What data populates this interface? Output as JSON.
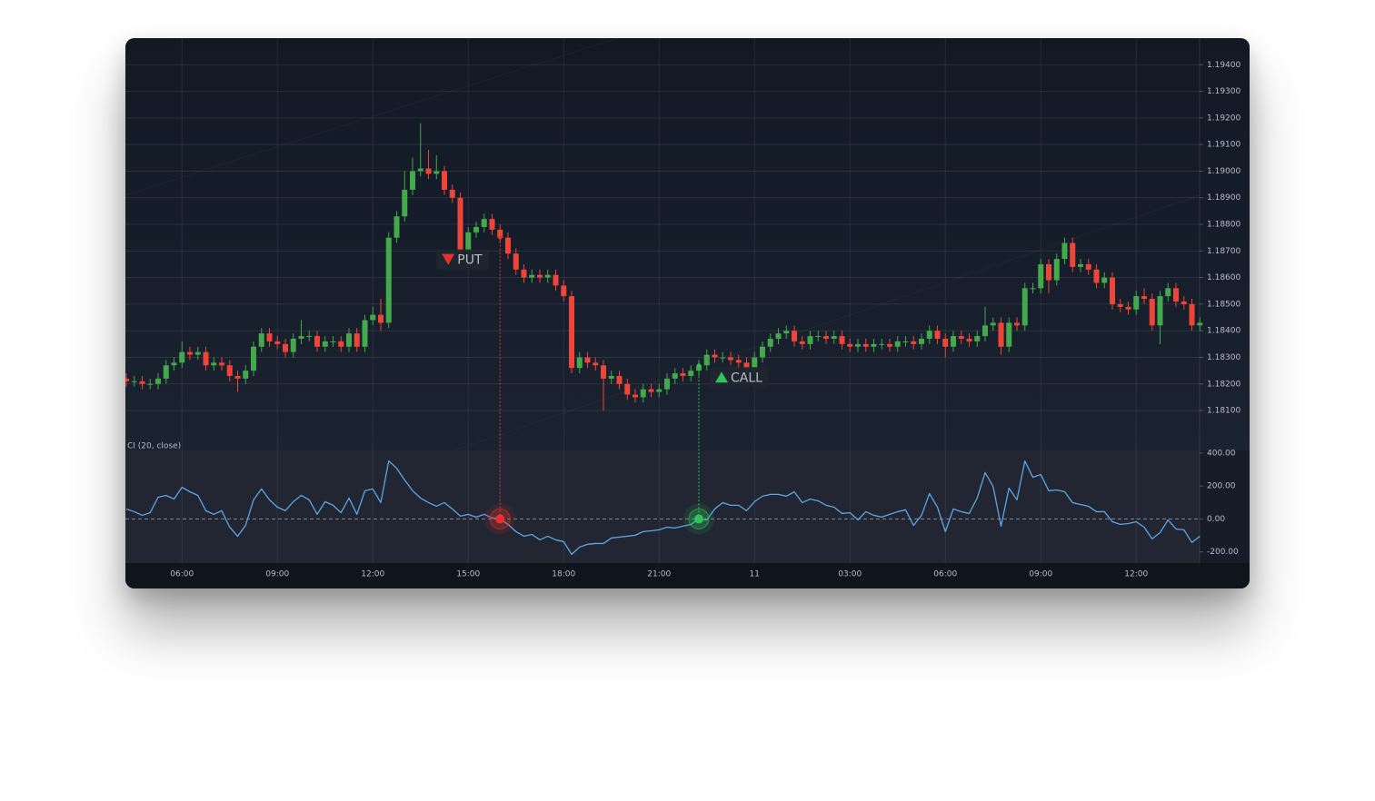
{
  "chart_data": [
    {
      "type": "candlestick",
      "categories": [
        null,
        null,
        null,
        null,
        null,
        null,
        null,
        "06:00",
        null,
        null,
        null,
        null,
        null,
        null,
        null,
        null,
        null,
        null,
        null,
        "09:00",
        null,
        null,
        null,
        null,
        null,
        null,
        null,
        null,
        null,
        null,
        null,
        "12:00",
        null,
        null,
        null,
        null,
        null,
        null,
        null,
        null,
        null,
        null,
        null,
        "15:00",
        null,
        null,
        null,
        null,
        null,
        null,
        null,
        null,
        null,
        null,
        null,
        "18:00",
        null,
        null,
        null,
        null,
        null,
        null,
        null,
        null,
        null,
        null,
        null,
        "21:00",
        null,
        null,
        null,
        null,
        null,
        null,
        null,
        null,
        null,
        null,
        null,
        "11",
        null,
        null,
        null,
        null,
        null,
        null,
        null,
        null,
        null,
        null,
        null,
        "03:00",
        null,
        null,
        null,
        null,
        null,
        null,
        null,
        null,
        null,
        null,
        null,
        "06:00",
        null,
        null,
        null,
        null,
        null,
        null,
        null,
        null,
        null,
        null,
        null,
        "09:00",
        null,
        null,
        null,
        null,
        null,
        null,
        null,
        null,
        null,
        null,
        null,
        "12:00",
        null,
        null,
        null,
        null,
        null,
        null,
        null,
        null
      ],
      "open": [
        1.1822,
        1.1821,
        1.1821,
        1.182,
        1.182,
        1.1822,
        1.1827,
        1.1828,
        1.1832,
        1.1831,
        1.1832,
        1.1827,
        1.1828,
        1.1827,
        1.1823,
        1.1822,
        1.1825,
        1.1834,
        1.1839,
        1.1836,
        1.1835,
        1.1832,
        1.1837,
        1.1838,
        1.1838,
        1.1834,
        1.1836,
        1.1836,
        1.1834,
        1.1839,
        1.1834,
        1.1844,
        1.1846,
        1.1843,
        1.1875,
        1.1883,
        1.1893,
        1.19,
        1.1901,
        1.1899,
        1.19,
        1.1893,
        1.189,
        1.187,
        1.1877,
        1.1879,
        1.1882,
        1.1878,
        1.1875,
        1.1869,
        1.1863,
        1.186,
        1.1861,
        1.186,
        1.1861,
        1.1857,
        1.1853,
        1.1826,
        1.183,
        1.1828,
        1.1827,
        1.1822,
        1.1823,
        1.182,
        1.1816,
        1.1815,
        1.1818,
        1.1817,
        1.1818,
        1.1822,
        1.1824,
        1.1823,
        1.1825,
        1.1827,
        1.1831,
        1.183,
        1.183,
        1.1829,
        1.1828,
        1.1826,
        1.183,
        1.1834,
        1.1837,
        1.1839,
        1.184,
        1.1836,
        1.1835,
        1.1838,
        1.1838,
        1.1837,
        1.1838,
        1.1835,
        1.1834,
        1.1835,
        1.1834,
        1.1835,
        1.1835,
        1.1834,
        1.1836,
        1.1836,
        1.1835,
        1.1837,
        1.184,
        1.1837,
        1.1834,
        1.1838,
        1.1837,
        1.1836,
        1.1838,
        1.1842,
        1.1843,
        1.1834,
        1.1843,
        1.1842,
        1.1856,
        1.1856,
        1.1865,
        1.1859,
        1.1867,
        1.1873,
        1.1864,
        1.1865,
        1.1863,
        1.1858,
        1.186,
        1.185,
        1.1849,
        1.1848,
        1.1853,
        1.1852,
        1.1842,
        1.1853,
        1.1856,
        1.1851,
        1.185,
        1.1842
      ],
      "high": [
        1.1824,
        1.1823,
        1.1823,
        1.1822,
        1.1824,
        1.1829,
        1.183,
        1.1836,
        1.1834,
        1.1834,
        1.1834,
        1.183,
        1.183,
        1.1829,
        1.1825,
        1.1827,
        1.1836,
        1.1841,
        1.1841,
        1.1838,
        1.1837,
        1.1839,
        1.1844,
        1.184,
        1.184,
        1.1838,
        1.1838,
        1.1838,
        1.1841,
        1.1841,
        1.1846,
        1.1849,
        1.1852,
        1.1877,
        1.1885,
        1.19,
        1.1905,
        1.1918,
        1.1908,
        1.1906,
        1.1902,
        1.1895,
        1.1892,
        1.1879,
        1.1881,
        1.1884,
        1.1884,
        1.188,
        1.1877,
        1.1871,
        1.1865,
        1.1863,
        1.1863,
        1.1863,
        1.1863,
        1.1859,
        1.1855,
        1.1832,
        1.1832,
        1.183,
        1.1829,
        1.1825,
        1.1825,
        1.1822,
        1.1818,
        1.182,
        1.182,
        1.182,
        1.1824,
        1.1826,
        1.1826,
        1.1827,
        1.1829,
        1.1833,
        1.1833,
        1.1832,
        1.1832,
        1.1831,
        1.183,
        1.1832,
        1.1836,
        1.1839,
        1.1841,
        1.1842,
        1.1842,
        1.1838,
        1.184,
        1.184,
        1.184,
        1.184,
        1.184,
        1.1837,
        1.1837,
        1.1837,
        1.1837,
        1.1837,
        1.1837,
        1.1838,
        1.1838,
        1.1838,
        1.1839,
        1.1842,
        1.1842,
        1.1839,
        1.184,
        1.184,
        1.1839,
        1.184,
        1.1849,
        1.1845,
        1.1845,
        1.1845,
        1.1845,
        1.1858,
        1.1858,
        1.1867,
        1.1867,
        1.1869,
        1.1875,
        1.1875,
        1.1867,
        1.1867,
        1.1865,
        1.1862,
        1.1862,
        1.1852,
        1.1851,
        1.1855,
        1.1856,
        1.1854,
        1.1855,
        1.1858,
        1.1858,
        1.1853,
        1.1852,
        1.1845
      ],
      "low": [
        1.1819,
        1.1819,
        1.1818,
        1.1818,
        1.1818,
        1.182,
        1.1825,
        1.1826,
        1.1829,
        1.1829,
        1.1825,
        1.1825,
        1.1825,
        1.1821,
        1.1817,
        1.182,
        1.1823,
        1.1832,
        1.1834,
        1.1833,
        1.183,
        1.183,
        1.1835,
        1.1836,
        1.1832,
        1.1832,
        1.1834,
        1.1832,
        1.1832,
        1.1832,
        1.1832,
        1.1842,
        1.184,
        1.1841,
        1.1873,
        1.1881,
        1.1891,
        1.1898,
        1.1897,
        1.1897,
        1.1891,
        1.1888,
        1.1866,
        1.1868,
        1.1875,
        1.1877,
        1.1876,
        1.1873,
        1.1867,
        1.1861,
        1.1858,
        1.1858,
        1.1858,
        1.1858,
        1.1855,
        1.1851,
        1.1824,
        1.1824,
        1.1826,
        1.1825,
        1.181,
        1.182,
        1.1818,
        1.1814,
        1.1813,
        1.1813,
        1.1815,
        1.1815,
        1.1816,
        1.182,
        1.1821,
        1.1821,
        1.1823,
        1.1825,
        1.1828,
        1.1828,
        1.1827,
        1.1826,
        1.1824,
        1.1824,
        1.1828,
        1.1832,
        1.1835,
        1.1837,
        1.1834,
        1.1833,
        1.1833,
        1.1836,
        1.1835,
        1.1835,
        1.1833,
        1.1832,
        1.1832,
        1.1832,
        1.1832,
        1.1833,
        1.1832,
        1.1832,
        1.1834,
        1.1833,
        1.1833,
        1.1835,
        1.1835,
        1.183,
        1.1832,
        1.1835,
        1.1834,
        1.1834,
        1.1836,
        1.184,
        1.1831,
        1.1832,
        1.184,
        1.184,
        1.1854,
        1.1854,
        1.1854,
        1.1857,
        1.1865,
        1.1862,
        1.1862,
        1.1861,
        1.1856,
        1.1856,
        1.1848,
        1.1847,
        1.1846,
        1.1846,
        1.185,
        1.184,
        1.1835,
        1.1851,
        1.1849,
        1.1848,
        1.184,
        1.184
      ],
      "close": [
        1.1821,
        1.1821,
        1.182,
        1.182,
        1.1822,
        1.1827,
        1.1828,
        1.1832,
        1.1831,
        1.1832,
        1.1827,
        1.1828,
        1.1827,
        1.1823,
        1.1822,
        1.1825,
        1.1834,
        1.1839,
        1.1836,
        1.1835,
        1.1832,
        1.1837,
        1.1838,
        1.1838,
        1.1834,
        1.1836,
        1.1836,
        1.1834,
        1.1839,
        1.1834,
        1.1844,
        1.1846,
        1.1843,
        1.1875,
        1.1883,
        1.1893,
        1.19,
        1.1901,
        1.1899,
        1.19,
        1.1893,
        1.189,
        1.187,
        1.1877,
        1.1879,
        1.1882,
        1.1878,
        1.1875,
        1.1869,
        1.1863,
        1.186,
        1.1861,
        1.186,
        1.1861,
        1.1857,
        1.1853,
        1.1826,
        1.183,
        1.1828,
        1.1827,
        1.1822,
        1.1823,
        1.182,
        1.1816,
        1.1815,
        1.1818,
        1.1817,
        1.1818,
        1.1822,
        1.1824,
        1.1823,
        1.1825,
        1.1827,
        1.1831,
        1.183,
        1.183,
        1.1829,
        1.1828,
        1.1826,
        1.183,
        1.1834,
        1.1837,
        1.1839,
        1.184,
        1.1836,
        1.1835,
        1.1838,
        1.1838,
        1.1837,
        1.1838,
        1.1835,
        1.1834,
        1.1835,
        1.1834,
        1.1835,
        1.1835,
        1.1834,
        1.1836,
        1.1836,
        1.1835,
        1.1837,
        1.184,
        1.1837,
        1.1834,
        1.1838,
        1.1837,
        1.1836,
        1.1838,
        1.1842,
        1.1843,
        1.1834,
        1.1843,
        1.1842,
        1.1856,
        1.1856,
        1.1865,
        1.1859,
        1.1867,
        1.1873,
        1.1864,
        1.1865,
        1.1863,
        1.1858,
        1.186,
        1.185,
        1.1849,
        1.1848,
        1.1853,
        1.1852,
        1.1842,
        1.1853,
        1.1856,
        1.1851,
        1.185,
        1.1842,
        1.1843
      ],
      "up_color": "#43a94b",
      "down_color": "#ef4438",
      "ylim": [
        1.1795,
        1.195
      ],
      "yticks": [
        {
          "value": 1.181,
          "label": "1.18100"
        },
        {
          "value": 1.182,
          "label": "1.18200"
        },
        {
          "value": 1.183,
          "label": "1.18300"
        },
        {
          "value": 1.184,
          "label": "1.18400"
        },
        {
          "value": 1.185,
          "label": "1.18500"
        },
        {
          "value": 1.186,
          "label": "1.18600"
        },
        {
          "value": 1.187,
          "label": "1.18700"
        },
        {
          "value": 1.188,
          "label": "1.18800"
        },
        {
          "value": 1.189,
          "label": "1.18900"
        },
        {
          "value": 1.19,
          "label": "1.19000"
        },
        {
          "value": 1.191,
          "label": "1.19100"
        },
        {
          "value": 1.192,
          "label": "1.19200"
        },
        {
          "value": 1.193,
          "label": "1.19300"
        },
        {
          "value": 1.194,
          "label": "1.19400"
        }
      ],
      "grid": true,
      "signals": [
        {
          "label": "PUT",
          "at": 47,
          "color": "#e8302c"
        },
        {
          "label": "CALL",
          "at": 72,
          "color": "#2fc45a"
        }
      ]
    },
    {
      "type": "line",
      "title": "CI (20, close)",
      "series": [
        {
          "color": "#5ea6e3",
          "values": [
            60,
            44,
            22,
            38,
            132,
            143,
            121,
            192,
            165,
            143,
            50,
            28,
            50,
            -50,
            -105,
            -39,
            116,
            182,
            116,
            72,
            50,
            105,
            143,
            116,
            28,
            105,
            83,
            38,
            127,
            28,
            171,
            182,
            99,
            352,
            308,
            237,
            171,
            127,
            99,
            77,
            99,
            61,
            17,
            28,
            11,
            28,
            6,
            0,
            -33,
            -77,
            -105,
            -94,
            -127,
            -105,
            -127,
            -138,
            -215,
            -171,
            -154,
            -149,
            -149,
            -116,
            -110,
            -105,
            -99,
            -77,
            -72,
            -66,
            -50,
            -55,
            -44,
            -33,
            0,
            -6,
            61,
            99,
            83,
            83,
            50,
            105,
            138,
            149,
            149,
            138,
            165,
            99,
            121,
            110,
            83,
            72,
            33,
            38,
            -6,
            44,
            22,
            11,
            28,
            44,
            55,
            -39,
            22,
            154,
            72,
            -77,
            61,
            44,
            33,
            127,
            281,
            198,
            -44,
            187,
            116,
            352,
            253,
            270,
            171,
            176,
            165,
            99,
            88,
            77,
            44,
            44,
            -17,
            -33,
            -28,
            -17,
            -50,
            -121,
            -83,
            -6,
            -61,
            -66,
            -143,
            -105
          ]
        }
      ],
      "ylim": [
        -268,
        416
      ],
      "yticks": [
        {
          "value": 400,
          "label": "400.00"
        },
        {
          "value": 200,
          "label": "200.00"
        },
        {
          "value": 0,
          "label": "0.00"
        },
        {
          "value": -200,
          "label": "-200.00"
        }
      ],
      "zero_line": true
    }
  ]
}
